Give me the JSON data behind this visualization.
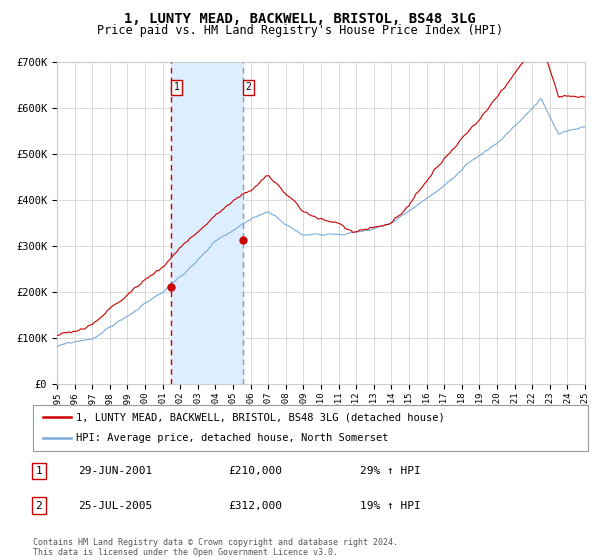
{
  "title": "1, LUNTY MEAD, BACKWELL, BRISTOL, BS48 3LG",
  "subtitle": "Price paid vs. HM Land Registry's House Price Index (HPI)",
  "legend_line1": "1, LUNTY MEAD, BACKWELL, BRISTOL, BS48 3LG (detached house)",
  "legend_line2": "HPI: Average price, detached house, North Somerset",
  "sale1_date": "29-JUN-2001",
  "sale1_price": "£210,000",
  "sale1_hpi": "29% ↑ HPI",
  "sale1_year": 2001.49,
  "sale1_value": 210000,
  "sale2_date": "25-JUL-2005",
  "sale2_price": "£312,000",
  "sale2_hpi": "19% ↑ HPI",
  "sale2_year": 2005.56,
  "sale2_value": 312000,
  "hpi_color": "#7aabdb",
  "price_color": "#cc0000",
  "shade_color": "#ddeeff",
  "vline1_color": "#cc0000",
  "vline2_color": "#8899bb",
  "background_color": "#ffffff",
  "grid_color": "#cccccc",
  "ylim": [
    0,
    700000
  ],
  "yticks": [
    0,
    100000,
    200000,
    300000,
    400000,
    500000,
    600000,
    700000
  ],
  "ytick_labels": [
    "£0",
    "£100K",
    "£200K",
    "£300K",
    "£400K",
    "£500K",
    "£600K",
    "£700K"
  ],
  "xlim_start": 1995,
  "xlim_end": 2025,
  "footer": "Contains HM Land Registry data © Crown copyright and database right 2024.\nThis data is licensed under the Open Government Licence v3.0."
}
